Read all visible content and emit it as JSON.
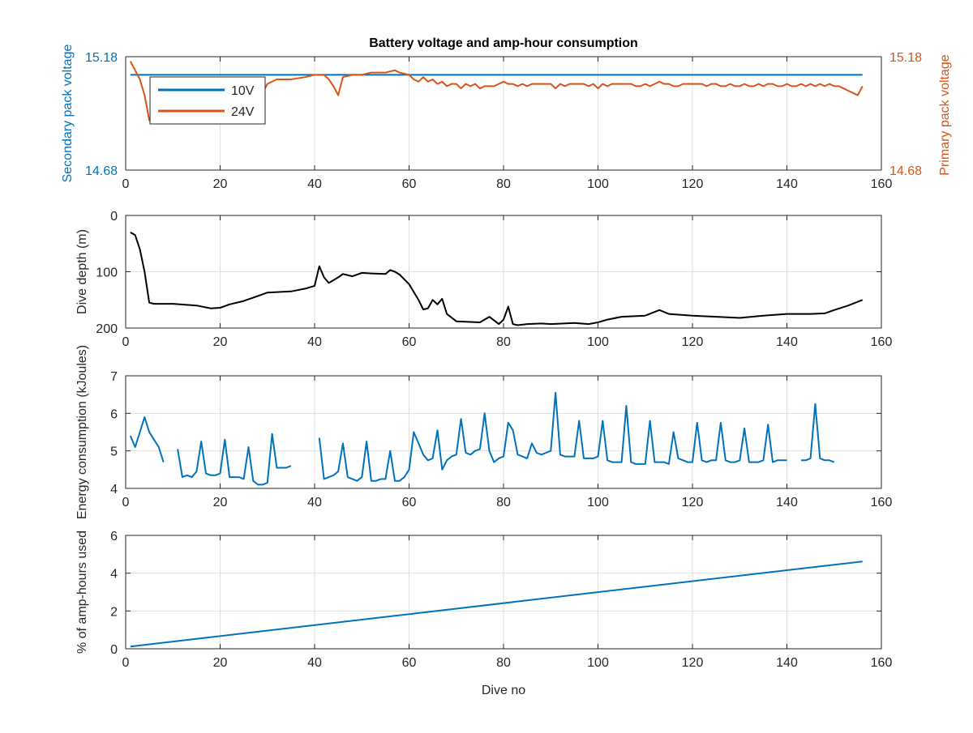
{
  "figure": {
    "title": "Battery voltage and amp-hour consumption"
  },
  "colors": {
    "blue": "#0072bd",
    "orange": "#d95319",
    "black": "#000000",
    "axis": "#262626",
    "grid": "#dfdfdf"
  },
  "chart_data": [
    {
      "type": "line",
      "title": "Battery voltage and amp-hour consumption",
      "xlabel": "",
      "ylabel": "Secondary pack voltage",
      "ylabel_right": "Primary pack voltage",
      "xlim": [
        0,
        160
      ],
      "ylim": [
        14.68,
        15.18
      ],
      "xticks": [
        0,
        20,
        40,
        60,
        80,
        100,
        120,
        140,
        160
      ],
      "yticks_left": [
        "14.68",
        "15.18"
      ],
      "yticks_right": [
        "14.68",
        "15.18"
      ],
      "grid": true,
      "legend": {
        "placement": "top-left",
        "entries": [
          "10V",
          "24V"
        ]
      },
      "series": [
        {
          "name": "10V",
          "axis": "left",
          "color": "#0072bd",
          "x": [
            1,
            156
          ],
          "y": [
            15.1,
            15.1
          ]
        },
        {
          "name": "24V",
          "axis": "right",
          "color": "#d95319",
          "x": [
            1,
            2,
            3,
            4,
            5,
            5.5,
            6,
            6.5,
            7,
            8,
            10,
            12,
            15,
            18,
            20,
            22,
            25,
            27,
            28,
            29,
            30,
            32,
            35,
            38,
            40,
            42,
            43,
            44,
            45,
            46,
            48,
            50,
            52,
            55,
            57,
            58,
            60,
            61,
            62,
            63,
            64,
            65,
            66,
            67,
            68,
            69,
            70,
            71,
            72,
            73,
            74,
            75,
            76,
            77,
            78,
            79,
            80,
            81,
            82,
            83,
            84,
            85,
            86,
            87,
            88,
            89,
            90,
            91,
            92,
            93,
            94,
            95,
            96,
            97,
            98,
            99,
            100,
            101,
            102,
            103,
            104,
            105,
            106,
            107,
            108,
            109,
            110,
            111,
            112,
            113,
            114,
            115,
            116,
            117,
            118,
            119,
            120,
            121,
            122,
            123,
            124,
            125,
            126,
            127,
            128,
            129,
            130,
            131,
            132,
            133,
            134,
            135,
            136,
            137,
            138,
            139,
            140,
            141,
            142,
            143,
            144,
            145,
            146,
            147,
            148,
            149,
            150,
            151,
            152,
            153,
            154,
            155,
            156
          ],
          "y": [
            15.16,
            15.12,
            15.08,
            15.01,
            14.9,
            14.89,
            14.89,
            14.95,
            15.03,
            15.07,
            15.08,
            15.08,
            15.08,
            15.08,
            15.08,
            15.08,
            15.08,
            15.05,
            15.04,
            15.02,
            15.06,
            15.08,
            15.08,
            15.09,
            15.1,
            15.1,
            15.08,
            15.05,
            15.01,
            15.09,
            15.1,
            15.1,
            15.11,
            15.11,
            15.12,
            15.11,
            15.1,
            15.08,
            15.07,
            15.09,
            15.07,
            15.08,
            15.06,
            15.07,
            15.05,
            15.06,
            15.06,
            15.04,
            15.06,
            15.05,
            15.06,
            15.04,
            15.05,
            15.05,
            15.05,
            15.06,
            15.07,
            15.06,
            15.06,
            15.05,
            15.06,
            15.05,
            15.06,
            15.06,
            15.06,
            15.06,
            15.06,
            15.04,
            15.06,
            15.05,
            15.06,
            15.06,
            15.06,
            15.06,
            15.05,
            15.06,
            15.04,
            15.06,
            15.05,
            15.06,
            15.06,
            15.06,
            15.06,
            15.06,
            15.05,
            15.05,
            15.06,
            15.05,
            15.06,
            15.07,
            15.06,
            15.06,
            15.05,
            15.05,
            15.06,
            15.06,
            15.06,
            15.06,
            15.06,
            15.05,
            15.06,
            15.06,
            15.05,
            15.05,
            15.06,
            15.05,
            15.05,
            15.06,
            15.05,
            15.05,
            15.06,
            15.05,
            15.06,
            15.06,
            15.05,
            15.05,
            15.06,
            15.05,
            15.05,
            15.06,
            15.05,
            15.06,
            15.05,
            15.06,
            15.05,
            15.06,
            15.05,
            15.05,
            15.04,
            15.03,
            15.02,
            15.01,
            15.05
          ]
        }
      ]
    },
    {
      "type": "line",
      "xlabel": "",
      "ylabel": "Dive depth (m)",
      "xlim": [
        0,
        160
      ],
      "ylim": [
        0,
        200
      ],
      "y_reversed": true,
      "xticks": [
        0,
        20,
        40,
        60,
        80,
        100,
        120,
        140,
        160
      ],
      "yticks": [
        0,
        100,
        200
      ],
      "grid": true,
      "series": [
        {
          "color": "#000000",
          "x": [
            1,
            2,
            3,
            4,
            5,
            6,
            10,
            15,
            18,
            20,
            22,
            25,
            28,
            30,
            35,
            38,
            40,
            41,
            42,
            43,
            45,
            46,
            48,
            50,
            52,
            55,
            56,
            57,
            58,
            60,
            62,
            63,
            64,
            65,
            66,
            67,
            68,
            70,
            75,
            77,
            79,
            80,
            81,
            82,
            83,
            85,
            88,
            90,
            95,
            98,
            100,
            102,
            105,
            110,
            113,
            115,
            120,
            125,
            130,
            135,
            140,
            145,
            148,
            150,
            153,
            156
          ],
          "y": [
            30,
            35,
            60,
            100,
            155,
            157,
            157,
            160,
            165,
            164,
            158,
            152,
            143,
            137,
            135,
            130,
            125,
            90,
            110,
            120,
            110,
            104,
            108,
            102,
            103,
            104,
            97,
            100,
            105,
            122,
            150,
            167,
            165,
            150,
            158,
            148,
            175,
            188,
            190,
            180,
            193,
            185,
            162,
            193,
            195,
            193,
            192,
            193,
            191,
            193,
            190,
            185,
            180,
            178,
            168,
            175,
            178,
            180,
            182,
            178,
            175,
            175,
            174,
            168,
            160,
            150
          ]
        }
      ]
    },
    {
      "type": "line",
      "xlabel": "",
      "ylabel": "Energy consumption (kJoules)",
      "xlim": [
        0,
        160
      ],
      "ylim": [
        4,
        7
      ],
      "xticks": [
        0,
        20,
        40,
        60,
        80,
        100,
        120,
        140,
        160
      ],
      "yticks": [
        4,
        5,
        6,
        7
      ],
      "grid": true,
      "series": [
        {
          "color": "#0072bd",
          "x": [
            1,
            2,
            3,
            4,
            5,
            6,
            7,
            8,
            null,
            11,
            12,
            13,
            14,
            15,
            16,
            17,
            18,
            19,
            20,
            21,
            22,
            23,
            24,
            25,
            26,
            27,
            28,
            29,
            30,
            31,
            32,
            33,
            34,
            35,
            null,
            41,
            42,
            43,
            44,
            45,
            46,
            47,
            48,
            49,
            50,
            51,
            52,
            53,
            54,
            55,
            56,
            57,
            58,
            59,
            60,
            61,
            62,
            63,
            64,
            65,
            66,
            67,
            68,
            69,
            70,
            71,
            72,
            73,
            74,
            75,
            76,
            77,
            78,
            79,
            80,
            81,
            82,
            83,
            84,
            85,
            86,
            87,
            88,
            89,
            90,
            91,
            92,
            93,
            94,
            95,
            96,
            97,
            98,
            99,
            100,
            101,
            102,
            103,
            104,
            105,
            106,
            107,
            108,
            109,
            110,
            111,
            112,
            113,
            114,
            115,
            116,
            117,
            118,
            119,
            120,
            121,
            122,
            123,
            124,
            125,
            126,
            127,
            128,
            129,
            130,
            131,
            132,
            133,
            134,
            135,
            136,
            137,
            138,
            139,
            140,
            null,
            143,
            144,
            145,
            146,
            147,
            148,
            149,
            150
          ],
          "y": [
            5.4,
            5.1,
            5.5,
            5.9,
            5.5,
            5.3,
            5.1,
            4.7,
            null,
            5.05,
            4.3,
            4.35,
            4.3,
            4.45,
            5.25,
            4.4,
            4.35,
            4.35,
            4.4,
            5.3,
            4.3,
            4.3,
            4.3,
            4.25,
            5.1,
            4.2,
            4.1,
            4.1,
            4.15,
            5.45,
            4.55,
            4.55,
            4.55,
            4.6,
            null,
            5.35,
            4.25,
            4.3,
            4.35,
            4.45,
            5.2,
            4.3,
            4.25,
            4.2,
            4.3,
            5.25,
            4.2,
            4.2,
            4.25,
            4.25,
            5.0,
            4.2,
            4.2,
            4.3,
            4.5,
            5.5,
            5.2,
            4.9,
            4.75,
            4.8,
            5.55,
            4.5,
            4.75,
            4.85,
            4.9,
            5.85,
            4.95,
            4.9,
            5.0,
            5.05,
            6.0,
            5.0,
            4.7,
            4.8,
            4.85,
            5.75,
            5.55,
            4.9,
            4.85,
            4.8,
            5.2,
            4.95,
            4.9,
            4.95,
            5.0,
            6.55,
            4.9,
            4.85,
            4.85,
            4.85,
            5.8,
            4.8,
            4.8,
            4.8,
            4.85,
            5.8,
            4.75,
            4.7,
            4.7,
            4.7,
            6.2,
            4.7,
            4.65,
            4.65,
            4.65,
            5.8,
            4.7,
            4.7,
            4.7,
            4.65,
            5.5,
            4.8,
            4.75,
            4.7,
            4.7,
            5.75,
            4.75,
            4.7,
            4.75,
            4.75,
            5.75,
            4.75,
            4.7,
            4.7,
            4.75,
            5.6,
            4.7,
            4.7,
            4.7,
            4.75,
            5.7,
            4.7,
            4.75,
            4.75,
            4.75,
            null,
            4.75,
            4.75,
            4.8,
            6.25,
            4.8,
            4.75,
            4.75,
            4.7
          ]
        }
      ]
    },
    {
      "type": "line",
      "xlabel": "Dive no",
      "ylabel": "% of amp-hours used",
      "xlim": [
        0,
        160
      ],
      "ylim": [
        0,
        6
      ],
      "xticks": [
        0,
        20,
        40,
        60,
        80,
        100,
        120,
        140,
        160
      ],
      "yticks": [
        0,
        2,
        4,
        6
      ],
      "grid": true,
      "series": [
        {
          "color": "#0072bd",
          "x": [
            1,
            156
          ],
          "y": [
            0.12,
            4.62
          ]
        }
      ]
    }
  ]
}
